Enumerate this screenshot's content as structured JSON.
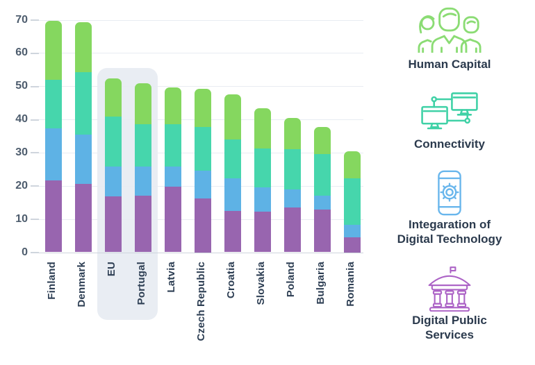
{
  "chart_data": {
    "type": "bar",
    "stacked": true,
    "title": "",
    "xlabel": "",
    "ylabel": "",
    "categories": [
      "Finland",
      "Denmark",
      "EU",
      "Portugal",
      "Latvia",
      "Czech Republic",
      "Croatia",
      "Slovakia",
      "Poland",
      "Bulgaria",
      "Romania"
    ],
    "highlighted_categories": [
      "EU",
      "Portugal"
    ],
    "series": [
      {
        "name": "Digital Public Services",
        "color": "#9865af",
        "values": [
          21.7,
          20.5,
          16.8,
          17.0,
          19.7,
          16.2,
          12.5,
          12.3,
          13.4,
          12.8,
          4.5
        ]
      },
      {
        "name": "Integaration of Digital Technology",
        "color": "#5eb2e5",
        "values": [
          15.6,
          15.0,
          9.0,
          8.9,
          6.2,
          8.3,
          9.7,
          7.3,
          5.6,
          4.2,
          3.7
        ]
      },
      {
        "name": "Connectivity",
        "color": "#46d6ac",
        "values": [
          14.6,
          18.8,
          15.0,
          12.7,
          12.7,
          13.2,
          11.7,
          11.6,
          12.1,
          12.6,
          14.0
        ]
      },
      {
        "name": "Human Capital",
        "color": "#85d75f",
        "values": [
          17.7,
          15.0,
          11.5,
          12.2,
          11.1,
          11.6,
          13.6,
          12.1,
          9.4,
          8.1,
          8.3
        ]
      }
    ],
    "totals": [
      69.6,
      69.3,
      52.3,
      50.8,
      49.7,
      49.3,
      47.5,
      43.3,
      40.5,
      37.7,
      30.5
    ],
    "ylim": [
      0,
      70
    ],
    "ytick_step": 10,
    "yticks": [
      "0",
      "10",
      "20",
      "30",
      "40",
      "50",
      "60",
      "70"
    ],
    "grid": true,
    "legend_position": "right"
  },
  "legend": {
    "items": [
      {
        "label": "Human Capital",
        "icon": "people-icon",
        "color": "#8bdc74"
      },
      {
        "label": "Connectivity",
        "icon": "network-monitors-icon",
        "color": "#3fd1a6"
      },
      {
        "label": "Integaration of Digital Technology",
        "icon": "phone-gear-icon",
        "color": "#69b6ec"
      },
      {
        "label": "Digital Public Services",
        "icon": "bank-icon",
        "color": "#ac63c6"
      }
    ]
  },
  "colors": {
    "highlight_band": "#e9edf3",
    "gridline": "#e8ecf2",
    "axis_line": "#ced4dc",
    "y_tick_text": "#4d5c6d",
    "x_tick_text": "#2e3f54",
    "legend_text": "#2b3a4d",
    "background": "#ffffff"
  }
}
